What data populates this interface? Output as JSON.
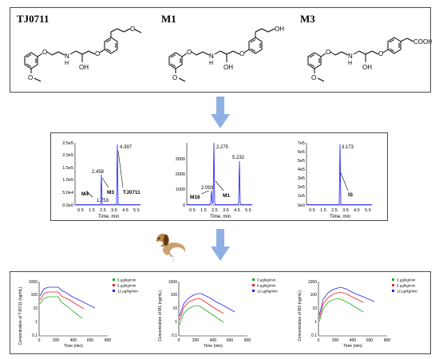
{
  "structures": {
    "compounds": [
      {
        "name": "TJ0711",
        "oh_label": "OH",
        "nh_label": "N",
        "h_label": "H",
        "methoxy_label": "O",
        "ring_o_label": "O",
        "tail_o_label": "O"
      },
      {
        "name": "M1",
        "oh_label": "OH",
        "nh_label": "N",
        "h_label": "H",
        "methoxy_label": "O",
        "ring_o_label": "O",
        "tail_o_label": "OH"
      },
      {
        "name": "M3",
        "oh_label": "OH",
        "nh_label": "N",
        "h_label": "H",
        "methoxy_label": "O",
        "ring_o_label": "O",
        "tail_o_label": "COOH"
      }
    ]
  },
  "chromatograms": [
    {
      "ylabels": [
        "2.5e5",
        "2.0e5",
        "1.5e5",
        "1.0e5",
        "5.0e4",
        "0.0e0"
      ],
      "xlabels": [
        "0.5",
        "1.5",
        "2.5",
        "3.5",
        "4.5",
        "5.5"
      ],
      "xtitle": "Time, min",
      "peak_labels": [
        "1.753",
        "2.458",
        "4.397"
      ],
      "compound_labels": [
        "M4",
        "M3",
        "TJ0711"
      ]
    },
    {
      "ylabels": [
        "3000",
        "2000",
        "1000",
        "0"
      ],
      "xlabels": [
        "0.5",
        "1.5",
        "2.5",
        "3.5",
        "4.5",
        "5.5"
      ],
      "xtitle": "Time, min",
      "peak_labels": [
        "2.093",
        "2.275",
        "5.232"
      ],
      "compound_labels": [
        "M16",
        "M1"
      ]
    },
    {
      "ylabels": [
        "7e5",
        "6e5",
        "5e5",
        "4e5",
        "3e5",
        "2e5",
        "1e5",
        "0e0"
      ],
      "xlabels": [
        "0.5",
        "1.5",
        "2.5",
        "3.5",
        "4.5",
        "5.5"
      ],
      "xtitle": "Time, min",
      "peak_labels": [
        "3.173"
      ],
      "compound_labels": [
        "IS"
      ]
    }
  ],
  "pk": {
    "charts": [
      {
        "ylabel": "Concentration of TJ0711 (ng/mL)"
      },
      {
        "ylabel": "Concentration of M1 (ng/mL)"
      },
      {
        "ylabel": "Concentration of M3 (ng/mL)"
      }
    ],
    "yticks": [
      "1000",
      "100",
      "10",
      "1",
      "0.1"
    ],
    "xticks": [
      "0",
      "200",
      "400",
      "600",
      "800"
    ],
    "xlabel": "Time (min)",
    "legend": [
      "3 μg/kg/min",
      "6 μg/kg/min",
      "12 μg/kg/min"
    ],
    "colors": [
      "#22aa22",
      "#ee2222",
      "#2222ee"
    ]
  },
  "colors": {
    "arrow": "#8fb0e4",
    "peak": "#1a1aff"
  },
  "icons": [
    "down-arrow-icon",
    "beagle-dog-icon"
  ]
}
